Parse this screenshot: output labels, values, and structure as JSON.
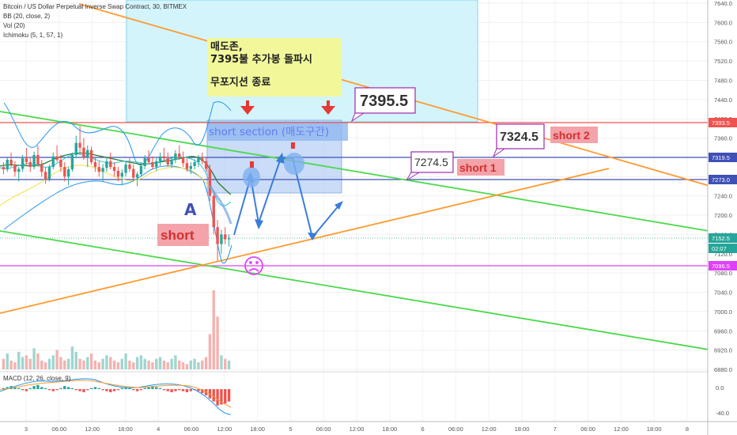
{
  "header": {
    "title": "Bitcoin / US Dollar Perpetual Inverse Swap Contract, 30, BITMEX",
    "indicators": [
      "BB (20, close, 2)",
      "Vol (20)",
      "Ichimoku (5, 1, 57, 1)"
    ],
    "macd_label": "MACD (12, 26, close, 9)"
  },
  "price_axis": {
    "ticks": [
      "7640.0",
      "7600.0",
      "7560.0",
      "7520.0",
      "7480.0",
      "7440.0",
      "7400.0",
      "7360.0",
      "7320.0",
      "7280.0",
      "7240.0",
      "7200.0",
      "7160.0",
      "7120.0",
      "7080.0",
      "7040.0",
      "7000.0",
      "6960.0",
      "6920.0",
      "6880.0"
    ],
    "macd_ticks": [
      "0.0",
      "-40.0"
    ],
    "badges": [
      {
        "label": "7393.5",
        "color": "#ef5350"
      },
      {
        "label": "7319.5",
        "color": "#3f51b5"
      },
      {
        "label": "7273.0",
        "color": "#3f51b5"
      },
      {
        "label": "7152.5",
        "color": "#26a69a"
      },
      {
        "label": "02:07",
        "color": "#26a69a"
      },
      {
        "label": "7096.5",
        "color": "#e040fb"
      }
    ]
  },
  "time_axis": [
    "3",
    "06:00",
    "12:00",
    "18:00",
    "4",
    "06:00",
    "12:00",
    "18:00",
    "5",
    "06:00",
    "12:00",
    "18:00",
    "6",
    "06:00",
    "12:00",
    "18:00",
    "7",
    "06:00",
    "12:00",
    "18:00",
    "8"
  ],
  "annotations": {
    "sell_zone_note_line1": "매도존,",
    "sell_zone_note_line2": "7395불 추가봉 돌파시",
    "sell_zone_note_line3": "무포지션 종료",
    "short_section": "short section (매도구간)",
    "label_a": "A",
    "short_label": "short",
    "short1": "short 1",
    "short2": "short 2",
    "callout_7395": "7395.5",
    "callout_7324": "7324.5",
    "callout_7274": "7274.5"
  },
  "colors": {
    "red_line": "#ef5350",
    "blue_line": "#3f51b5",
    "magenta_line": "#e040fb",
    "green_trend": "#4cd94c",
    "orange_trend": "#ff9a2e",
    "cyan_zone": "#d4f4fb",
    "note_bg": "#f2f89a",
    "short_bg": "#f3a3a9"
  },
  "chart_data": {
    "type": "candlestick",
    "ylim": [
      6880,
      7640
    ],
    "horizontal_levels": [
      7393.5,
      7319.5,
      7273.0,
      7096.5
    ],
    "last_price": 7152.5,
    "candles_approx": [
      [
        7300,
        7310,
        7285,
        7295
      ],
      [
        7295,
        7320,
        7290,
        7315
      ],
      [
        7315,
        7330,
        7300,
        7305
      ],
      [
        7305,
        7312,
        7280,
        7290
      ],
      [
        7290,
        7300,
        7270,
        7296
      ],
      [
        7296,
        7325,
        7290,
        7318
      ],
      [
        7318,
        7340,
        7305,
        7310
      ],
      [
        7310,
        7318,
        7290,
        7300
      ],
      [
        7300,
        7332,
        7295,
        7325
      ],
      [
        7325,
        7345,
        7300,
        7305
      ],
      [
        7305,
        7315,
        7280,
        7290
      ],
      [
        7290,
        7300,
        7265,
        7275
      ],
      [
        7275,
        7305,
        7270,
        7300
      ],
      [
        7300,
        7330,
        7295,
        7322
      ],
      [
        7322,
        7345,
        7310,
        7315
      ],
      [
        7315,
        7325,
        7290,
        7300
      ],
      [
        7300,
        7310,
        7270,
        7280
      ],
      [
        7280,
        7300,
        7262,
        7295
      ],
      [
        7295,
        7330,
        7290,
        7325
      ],
      [
        7325,
        7365,
        7318,
        7350
      ],
      [
        7350,
        7385,
        7330,
        7340
      ],
      [
        7340,
        7360,
        7315,
        7320
      ],
      [
        7320,
        7345,
        7300,
        7335
      ],
      [
        7335,
        7342,
        7305,
        7310
      ],
      [
        7310,
        7320,
        7290,
        7300
      ],
      [
        7300,
        7312,
        7280,
        7290
      ],
      [
        7290,
        7306,
        7270,
        7298
      ],
      [
        7298,
        7320,
        7290,
        7312
      ],
      [
        7312,
        7330,
        7295,
        7300
      ],
      [
        7300,
        7310,
        7280,
        7292
      ],
      [
        7292,
        7300,
        7270,
        7280
      ],
      [
        7280,
        7295,
        7262,
        7288
      ],
      [
        7288,
        7312,
        7280,
        7305
      ],
      [
        7305,
        7318,
        7290,
        7296
      ],
      [
        7296,
        7305,
        7270,
        7278
      ],
      [
        7278,
        7290,
        7260,
        7285
      ],
      [
        7285,
        7310,
        7280,
        7302
      ],
      [
        7302,
        7325,
        7295,
        7318
      ],
      [
        7318,
        7335,
        7305,
        7310
      ],
      [
        7310,
        7322,
        7295,
        7300
      ],
      [
        7300,
        7318,
        7292,
        7312
      ],
      [
        7312,
        7330,
        7302,
        7322
      ],
      [
        7322,
        7340,
        7312,
        7318
      ],
      [
        7318,
        7330,
        7300,
        7305
      ],
      [
        7305,
        7322,
        7298,
        7315
      ],
      [
        7315,
        7335,
        7308,
        7328
      ],
      [
        7328,
        7345,
        7315,
        7320
      ],
      [
        7320,
        7332,
        7300,
        7308
      ],
      [
        7308,
        7318,
        7290,
        7296
      ],
      [
        7296,
        7310,
        7285,
        7302
      ],
      [
        7302,
        7316,
        7295,
        7310
      ],
      [
        7310,
        7325,
        7300,
        7318
      ],
      [
        7318,
        7330,
        7305,
        7312
      ],
      [
        7312,
        7320,
        7290,
        7296
      ],
      [
        7296,
        7305,
        7230,
        7240
      ],
      [
        7240,
        7250,
        7160,
        7175
      ],
      [
        7175,
        7190,
        7105,
        7140
      ],
      [
        7140,
        7170,
        7120,
        7160
      ],
      [
        7160,
        7175,
        7140,
        7150
      ],
      [
        7150,
        7160,
        7135,
        7152
      ]
    ],
    "volume_approx": [
      6,
      9,
      5,
      4,
      10,
      7,
      8,
      6,
      12,
      9,
      5,
      4,
      6,
      8,
      11,
      7,
      5,
      6,
      13,
      10,
      6,
      5,
      7,
      9,
      5,
      4,
      6,
      8,
      7,
      5,
      4,
      6,
      9,
      5,
      4,
      7,
      8,
      6,
      5,
      4,
      6,
      7,
      5,
      4,
      6,
      8,
      5,
      4,
      3,
      5,
      6,
      4,
      5,
      7,
      20,
      45,
      30,
      8,
      6,
      5
    ],
    "macd_hist_approx": [
      1,
      2,
      3,
      2,
      1,
      -1,
      -2,
      1,
      3,
      4,
      2,
      1,
      -1,
      -2,
      -1,
      1,
      3,
      2,
      1,
      -1,
      -2,
      -3,
      -1,
      1,
      2,
      1,
      -1,
      -2,
      -3,
      -2,
      -1,
      1,
      2,
      1,
      -1,
      -2,
      -1,
      1,
      2,
      3,
      2,
      1,
      -1,
      -2,
      -3,
      -2,
      -1,
      -2,
      -3,
      -2,
      -1,
      -2,
      -4,
      -6,
      -9,
      -12,
      -16,
      -15,
      -14,
      -12
    ],
    "trendlines": [
      {
        "name": "green-upper",
        "from": [
          0,
          7394
        ],
        "to": [
          932,
          7141
        ]
      },
      {
        "name": "green-lower",
        "from": [
          0,
          7185
        ],
        "to": [
          932,
          6955
        ]
      },
      {
        "name": "orange-descending",
        "from": [
          100,
          7632
        ],
        "to": [
          932,
          7250
        ]
      },
      {
        "name": "orange-ascending",
        "from": [
          0,
          7050
        ],
        "to": [
          770,
          7290
        ]
      }
    ]
  }
}
